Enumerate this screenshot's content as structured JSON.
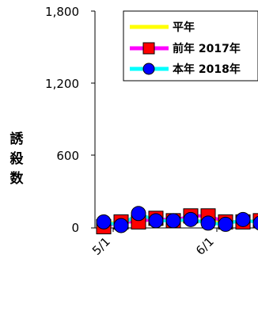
{
  "chart_data": {
    "type": "line",
    "title": "",
    "xlabel": "",
    "ylabel": "誘殺数",
    "ylim": [
      0,
      1800
    ],
    "yticks": [
      "0",
      "600",
      "1,200",
      "1,800"
    ],
    "ytick_values": [
      0,
      600,
      1200,
      1800
    ],
    "xticks": [
      "5/1",
      "6/1"
    ],
    "xtick_values": [
      0,
      6
    ],
    "x": [
      0,
      1,
      2,
      3,
      4,
      5,
      6,
      7,
      8,
      9
    ],
    "grid": false,
    "legend_position": "top-right",
    "series": [
      {
        "name": "平年",
        "color": "#ffff00",
        "marker": "none",
        "values": [
          40,
          45,
          60,
          70,
          65,
          60,
          55,
          50,
          55,
          60
        ]
      },
      {
        "name": "前年 2017年",
        "color": "#ff00ff",
        "marker_color": "#ff0000",
        "marker": "square",
        "values": [
          10,
          50,
          50,
          80,
          60,
          100,
          100,
          50,
          50,
          60
        ]
      },
      {
        "name": "本年 2018年",
        "color": "#00ffff",
        "marker_color": "#0000ff",
        "marker": "circle",
        "values": [
          50,
          20,
          120,
          60,
          60,
          70,
          40,
          30,
          70,
          40
        ]
      }
    ]
  }
}
